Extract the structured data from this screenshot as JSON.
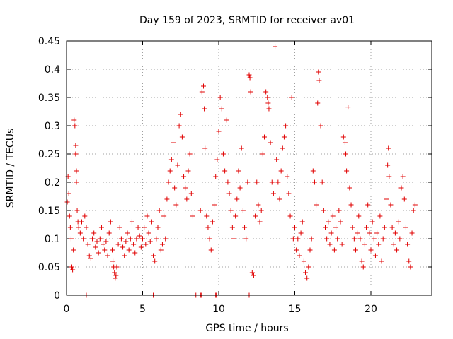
{
  "chart_data": {
    "type": "scatter",
    "title": "Day 159 of 2023, SRMTID for receiver av01",
    "xlabel": "GPS time / hours",
    "ylabel": "SRMTID / TECUs",
    "xlim": [
      0,
      24
    ],
    "ylim": [
      0,
      0.45
    ],
    "x_ticks": [
      0,
      5,
      10,
      15,
      20
    ],
    "y_ticks": [
      0,
      0.05,
      0.1,
      0.15,
      0.2,
      0.25,
      0.3,
      0.35,
      0.4,
      0.45
    ],
    "x_tick_labels": [
      "0",
      "5",
      "10",
      "15",
      "20"
    ],
    "y_tick_labels": [
      "0",
      "0.05",
      "0.1",
      "0.15",
      "0.2",
      "0.25",
      "0.3",
      "0.35",
      "0.4",
      "0.45"
    ],
    "grid": true,
    "marker": "plus",
    "color": "#e00000",
    "series": [
      {
        "name": "SRMTID",
        "points": [
          [
            0.05,
            0.165
          ],
          [
            0.1,
            0.21
          ],
          [
            0.15,
            0.18
          ],
          [
            0.2,
            0.14
          ],
          [
            0.25,
            0.12
          ],
          [
            0.3,
            0.1
          ],
          [
            0.35,
            0.05
          ],
          [
            0.4,
            0.045
          ],
          [
            0.45,
            0.08
          ],
          [
            0.5,
            0.31
          ],
          [
            0.55,
            0.3
          ],
          [
            0.6,
            0.265
          ],
          [
            0.6,
            0.25
          ],
          [
            0.65,
            0.22
          ],
          [
            0.65,
            0.2
          ],
          [
            0.7,
            0.15
          ],
          [
            0.75,
            0.13
          ],
          [
            0.8,
            0.12
          ],
          [
            0.9,
            0.11
          ],
          [
            1.0,
            0.13
          ],
          [
            1.1,
            0.1
          ],
          [
            1.2,
            0.14
          ],
          [
            1.3,
            0.12
          ],
          [
            1.4,
            0.09
          ],
          [
            1.5,
            0.07
          ],
          [
            1.6,
            0.065
          ],
          [
            1.7,
            0.1
          ],
          [
            1.8,
            0.11
          ],
          [
            1.9,
            0.085
          ],
          [
            2.0,
            0.095
          ],
          [
            2.1,
            0.075
          ],
          [
            2.2,
            0.1
          ],
          [
            2.3,
            0.12
          ],
          [
            2.4,
            0.09
          ],
          [
            2.5,
            0.08
          ],
          [
            2.6,
            0.095
          ],
          [
            2.7,
            0.07
          ],
          [
            2.8,
            0.11
          ],
          [
            2.9,
            0.13
          ],
          [
            3.0,
            0.08
          ],
          [
            3.05,
            0.06
          ],
          [
            3.1,
            0.05
          ],
          [
            3.15,
            0.04
          ],
          [
            3.2,
            0.03
          ],
          [
            3.25,
            0.035
          ],
          [
            3.3,
            0.05
          ],
          [
            3.4,
            0.09
          ],
          [
            3.5,
            0.12
          ],
          [
            3.6,
            0.1
          ],
          [
            3.7,
            0.085
          ],
          [
            3.8,
            0.07
          ],
          [
            3.9,
            0.095
          ],
          [
            4.0,
            0.11
          ],
          [
            4.1,
            0.08
          ],
          [
            4.2,
            0.1
          ],
          [
            4.3,
            0.13
          ],
          [
            4.4,
            0.09
          ],
          [
            4.5,
            0.075
          ],
          [
            4.6,
            0.1
          ],
          [
            4.7,
            0.12
          ],
          [
            4.8,
            0.105
          ],
          [
            4.9,
            0.085
          ],
          [
            5.0,
            0.1
          ],
          [
            5.1,
            0.12
          ],
          [
            5.2,
            0.09
          ],
          [
            5.3,
            0.14
          ],
          [
            5.4,
            0.11
          ],
          [
            5.5,
            0.095
          ],
          [
            5.6,
            0.13
          ],
          [
            5.7,
            0.07
          ],
          [
            5.8,
            0.06
          ],
          [
            5.9,
            0.1
          ],
          [
            6.0,
            0.12
          ],
          [
            6.1,
            0.15
          ],
          [
            6.2,
            0.08
          ],
          [
            6.3,
            0.09
          ],
          [
            6.4,
            0.14
          ],
          [
            6.5,
            0.1
          ],
          [
            6.6,
            0.17
          ],
          [
            6.7,
            0.2
          ],
          [
            6.8,
            0.22
          ],
          [
            6.9,
            0.24
          ],
          [
            7.0,
            0.27
          ],
          [
            7.1,
            0.19
          ],
          [
            7.2,
            0.16
          ],
          [
            7.3,
            0.23
          ],
          [
            7.4,
            0.3
          ],
          [
            7.5,
            0.32
          ],
          [
            7.6,
            0.28
          ],
          [
            7.7,
            0.21
          ],
          [
            7.8,
            0.19
          ],
          [
            7.9,
            0.17
          ],
          [
            8.0,
            0.22
          ],
          [
            8.1,
            0.25
          ],
          [
            8.2,
            0.18
          ],
          [
            8.3,
            0.14
          ],
          [
            8.8,
            0.15
          ],
          [
            8.9,
            0.36
          ],
          [
            9.0,
            0.37
          ],
          [
            9.05,
            0.33
          ],
          [
            9.1,
            0.26
          ],
          [
            9.2,
            0.14
          ],
          [
            9.3,
            0.12
          ],
          [
            9.4,
            0.1
          ],
          [
            9.5,
            0.08
          ],
          [
            9.6,
            0.13
          ],
          [
            9.7,
            0.16
          ],
          [
            9.8,
            0.21
          ],
          [
            9.9,
            0.24
          ],
          [
            10.0,
            0.29
          ],
          [
            10.1,
            0.35
          ],
          [
            10.2,
            0.33
          ],
          [
            10.3,
            0.25
          ],
          [
            10.4,
            0.22
          ],
          [
            10.5,
            0.31
          ],
          [
            10.6,
            0.2
          ],
          [
            10.7,
            0.18
          ],
          [
            10.8,
            0.15
          ],
          [
            10.9,
            0.12
          ],
          [
            11.0,
            0.1
          ],
          [
            11.1,
            0.14
          ],
          [
            11.2,
            0.17
          ],
          [
            11.3,
            0.22
          ],
          [
            11.4,
            0.19
          ],
          [
            11.5,
            0.26
          ],
          [
            11.6,
            0.15
          ],
          [
            11.7,
            0.12
          ],
          [
            11.8,
            0.1
          ],
          [
            11.9,
            0.2
          ],
          [
            12.0,
            0.39
          ],
          [
            12.05,
            0.385
          ],
          [
            12.1,
            0.36
          ],
          [
            12.2,
            0.04
          ],
          [
            12.3,
            0.035
          ],
          [
            12.4,
            0.14
          ],
          [
            12.5,
            0.2
          ],
          [
            12.6,
            0.16
          ],
          [
            12.7,
            0.13
          ],
          [
            12.8,
            0.15
          ],
          [
            12.9,
            0.25
          ],
          [
            13.0,
            0.28
          ],
          [
            13.1,
            0.36
          ],
          [
            13.2,
            0.35
          ],
          [
            13.25,
            0.34
          ],
          [
            13.3,
            0.33
          ],
          [
            13.4,
            0.27
          ],
          [
            13.5,
            0.2
          ],
          [
            13.6,
            0.18
          ],
          [
            13.7,
            0.44
          ],
          [
            13.8,
            0.24
          ],
          [
            13.9,
            0.2
          ],
          [
            14.0,
            0.17
          ],
          [
            14.1,
            0.22
          ],
          [
            14.2,
            0.26
          ],
          [
            14.3,
            0.28
          ],
          [
            14.4,
            0.3
          ],
          [
            14.5,
            0.21
          ],
          [
            14.6,
            0.18
          ],
          [
            14.7,
            0.14
          ],
          [
            14.8,
            0.35
          ],
          [
            14.9,
            0.1
          ],
          [
            15.0,
            0.12
          ],
          [
            15.1,
            0.08
          ],
          [
            15.2,
            0.1
          ],
          [
            15.3,
            0.07
          ],
          [
            15.4,
            0.11
          ],
          [
            15.5,
            0.13
          ],
          [
            15.6,
            0.06
          ],
          [
            15.7,
            0.04
          ],
          [
            15.8,
            0.03
          ],
          [
            15.9,
            0.05
          ],
          [
            16.0,
            0.08
          ],
          [
            16.1,
            0.1
          ],
          [
            16.2,
            0.22
          ],
          [
            16.3,
            0.2
          ],
          [
            16.4,
            0.16
          ],
          [
            16.5,
            0.34
          ],
          [
            16.55,
            0.395
          ],
          [
            16.6,
            0.38
          ],
          [
            16.7,
            0.3
          ],
          [
            16.8,
            0.2
          ],
          [
            16.9,
            0.15
          ],
          [
            17.0,
            0.12
          ],
          [
            17.1,
            0.1
          ],
          [
            17.2,
            0.13
          ],
          [
            17.3,
            0.09
          ],
          [
            17.4,
            0.11
          ],
          [
            17.5,
            0.14
          ],
          [
            17.6,
            0.08
          ],
          [
            17.7,
            0.12
          ],
          [
            17.8,
            0.1
          ],
          [
            17.9,
            0.15
          ],
          [
            18.0,
            0.13
          ],
          [
            18.1,
            0.09
          ],
          [
            18.2,
            0.28
          ],
          [
            18.3,
            0.27
          ],
          [
            18.35,
            0.25
          ],
          [
            18.4,
            0.22
          ],
          [
            18.5,
            0.333
          ],
          [
            18.6,
            0.19
          ],
          [
            18.7,
            0.16
          ],
          [
            18.8,
            0.12
          ],
          [
            18.9,
            0.1
          ],
          [
            19.0,
            0.08
          ],
          [
            19.1,
            0.11
          ],
          [
            19.2,
            0.14
          ],
          [
            19.3,
            0.1
          ],
          [
            19.4,
            0.06
          ],
          [
            19.5,
            0.05
          ],
          [
            19.6,
            0.09
          ],
          [
            19.7,
            0.12
          ],
          [
            19.8,
            0.16
          ],
          [
            19.9,
            0.11
          ],
          [
            20.0,
            0.08
          ],
          [
            20.1,
            0.13
          ],
          [
            20.2,
            0.1
          ],
          [
            20.3,
            0.07
          ],
          [
            20.4,
            0.11
          ],
          [
            20.5,
            0.09
          ],
          [
            20.6,
            0.14
          ],
          [
            20.7,
            0.06
          ],
          [
            20.8,
            0.1
          ],
          [
            20.9,
            0.12
          ],
          [
            21.0,
            0.17
          ],
          [
            21.1,
            0.23
          ],
          [
            21.15,
            0.26
          ],
          [
            21.2,
            0.21
          ],
          [
            21.3,
            0.16
          ],
          [
            21.4,
            0.12
          ],
          [
            21.5,
            0.09
          ],
          [
            21.6,
            0.11
          ],
          [
            21.7,
            0.08
          ],
          [
            21.8,
            0.13
          ],
          [
            21.9,
            0.1
          ],
          [
            22.0,
            0.19
          ],
          [
            22.1,
            0.21
          ],
          [
            22.2,
            0.17
          ],
          [
            22.3,
            0.12
          ],
          [
            22.4,
            0.09
          ],
          [
            22.5,
            0.06
          ],
          [
            22.6,
            0.05
          ],
          [
            22.7,
            0.11
          ],
          [
            22.8,
            0.15
          ],
          [
            22.9,
            0.16
          ]
        ]
      }
    ],
    "zero_markers": [
      1.3,
      5.7,
      8.5,
      8.8,
      8.85,
      9.8,
      9.85,
      12.0
    ]
  }
}
